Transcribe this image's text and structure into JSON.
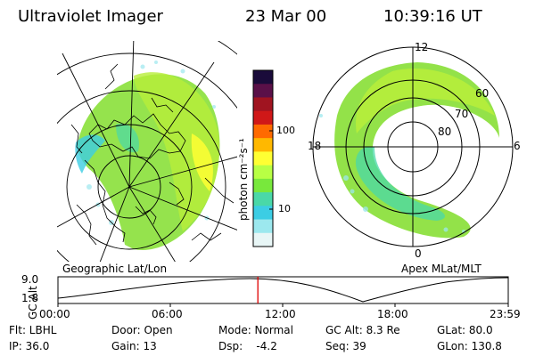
{
  "header": {
    "instrument": "Ultraviolet Imager",
    "date": "23 Mar 00",
    "time": "10:39:16 UT"
  },
  "left_panel": {
    "label": "Geographic Lat/Lon"
  },
  "right_panel": {
    "label": "Apex MLat/MLT",
    "mlt_labels": [
      "12",
      "18",
      "6",
      "0"
    ],
    "mlat_labels": [
      "60",
      "70",
      "80"
    ]
  },
  "colorbar": {
    "unit_label": "photon cm⁻²s⁻¹",
    "ticks": [
      "100",
      "10"
    ],
    "colors": [
      "#1a0b3a",
      "#5a1048",
      "#a01420",
      "#d01818",
      "#ff6a00",
      "#ffb800",
      "#ffff33",
      "#b8ff44",
      "#78e83c",
      "#4ad8a8",
      "#3ccde4",
      "#9ce8ee",
      "#e8f6f6"
    ]
  },
  "timeline": {
    "ylabel": "GC Alt",
    "yticks": [
      "9.0",
      "1.8"
    ],
    "xticks": [
      "00:00",
      "06:00",
      "12:00",
      "18:00",
      "23:59"
    ],
    "marker_time": "10:39",
    "marker_color": "#e00000"
  },
  "status": [
    {
      "key": "flt",
      "text": "Flt: LBHL"
    },
    {
      "key": "door",
      "text": "Door: Open"
    },
    {
      "key": "mode",
      "text": "Mode: Normal"
    },
    {
      "key": "gcalt",
      "text": "GC Alt: 8.3 Re"
    },
    {
      "key": "glat",
      "text": "GLat: 80.0"
    },
    {
      "key": "ip",
      "text": "IP: 36.0"
    },
    {
      "key": "gain",
      "text": "Gain: 13"
    },
    {
      "key": "dsp",
      "text": "Dsp:    -4.2"
    },
    {
      "key": "seq",
      "text": "Seq: 39"
    },
    {
      "key": "glon",
      "text": "GLon: 130.8"
    }
  ]
}
